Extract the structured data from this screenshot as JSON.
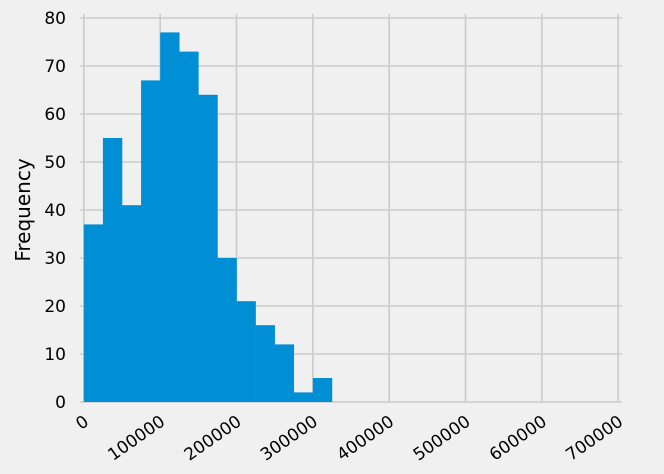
{
  "chart_data": {
    "type": "bar",
    "subtype": "histogram",
    "ylabel": "Frequency",
    "xlabel": "",
    "title": "",
    "grid": true,
    "xlim": [
      -5000,
      705000
    ],
    "ylim": [
      0,
      80
    ],
    "x_ticks": [
      0,
      100000,
      200000,
      300000,
      400000,
      500000,
      600000,
      700000
    ],
    "y_ticks": [
      0,
      10,
      20,
      30,
      40,
      50,
      60,
      70,
      80
    ],
    "bin_width": 25000,
    "bins": [
      {
        "start": 0,
        "count": 37
      },
      {
        "start": 25000,
        "count": 55
      },
      {
        "start": 50000,
        "count": 41
      },
      {
        "start": 75000,
        "count": 67
      },
      {
        "start": 100000,
        "count": 77
      },
      {
        "start": 125000,
        "count": 73
      },
      {
        "start": 150000,
        "count": 64
      },
      {
        "start": 175000,
        "count": 30
      },
      {
        "start": 200000,
        "count": 21
      },
      {
        "start": 225000,
        "count": 16
      },
      {
        "start": 250000,
        "count": 12
      },
      {
        "start": 275000,
        "count": 2
      },
      {
        "start": 300000,
        "count": 5
      }
    ],
    "bar_color": "#008fd5",
    "grid_color": "#cbcbcb",
    "background": "#f0f0f0"
  }
}
